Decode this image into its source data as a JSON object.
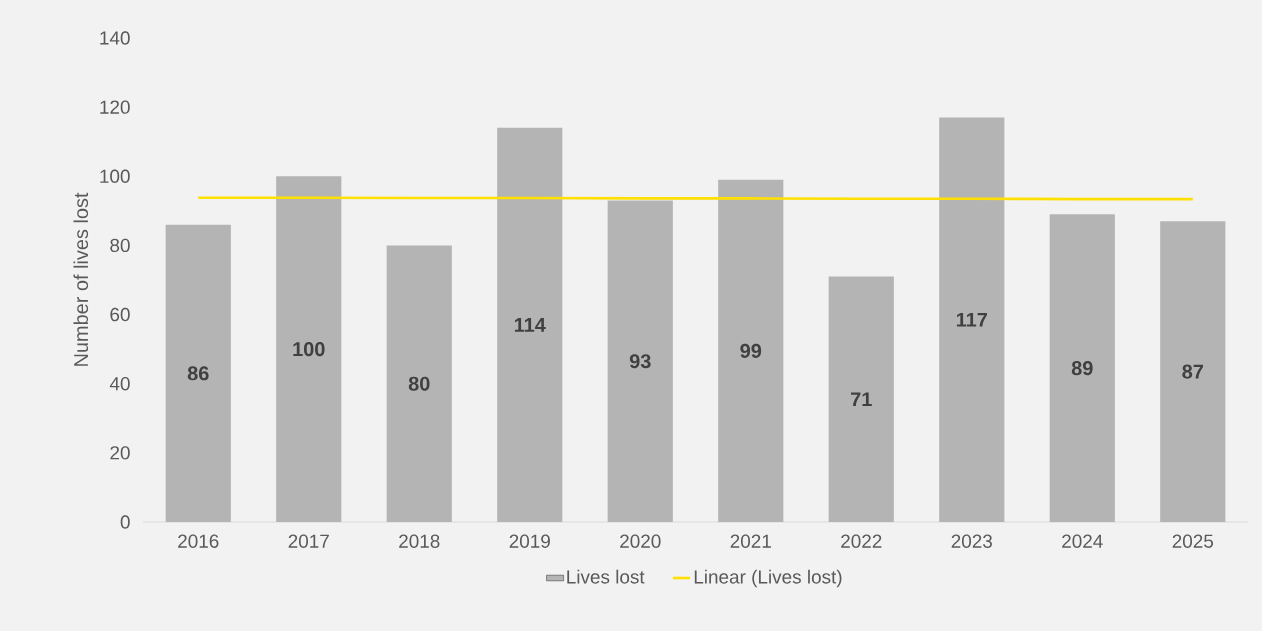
{
  "chart_data": {
    "type": "bar",
    "ylabel": "Number of lives lost",
    "categories": [
      "2016",
      "2017",
      "2018",
      "2019",
      "2020",
      "2021",
      "2022",
      "2023",
      "2024",
      "2025"
    ],
    "series": [
      {
        "name": "Lives lost",
        "color": "#b4b4b4",
        "values": [
          86,
          100,
          80,
          114,
          93,
          99,
          71,
          117,
          89,
          87
        ],
        "value_labels": [
          "86",
          "100",
          "80",
          "114",
          "93",
          "99",
          "71",
          "117",
          "89",
          "87"
        ]
      },
      {
        "name": "Linear (Lives lost)",
        "type": "line",
        "color": "#ffe000",
        "values": [
          93.8,
          93.8,
          93.7,
          93.7,
          93.6,
          93.6,
          93.5,
          93.5,
          93.4,
          93.4
        ]
      }
    ],
    "ylim": [
      0,
      140
    ],
    "yticks": [
      0,
      20,
      40,
      60,
      80,
      100,
      120,
      140
    ],
    "grid": false,
    "legend": "bottom"
  }
}
